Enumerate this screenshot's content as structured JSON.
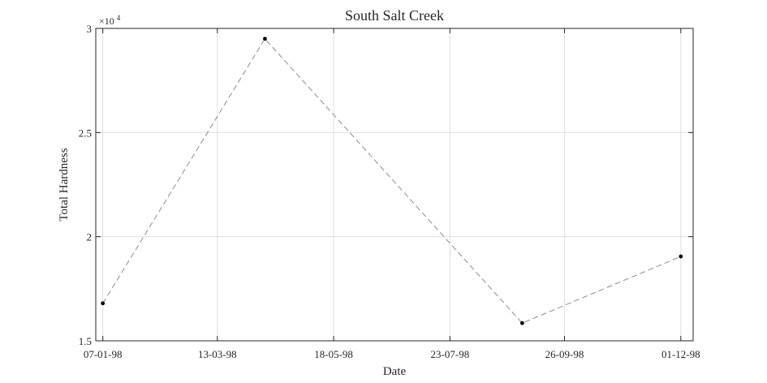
{
  "chart_data": {
    "type": "line",
    "title": "South Salt Creek",
    "xlabel": "Date",
    "ylabel": "Total Hardness",
    "y_exponent_label": "×10",
    "y_exponent_power": "4",
    "x": [
      "1998-01-07",
      "1998-04-09",
      "1998-09-02",
      "1998-12-01"
    ],
    "y": [
      16800,
      29500,
      15850,
      19050
    ],
    "xlim": [
      "1998-01-03",
      "1998-12-08"
    ],
    "ylim": [
      15000,
      30000
    ],
    "x_ticks": [
      "1998-01-07",
      "1998-03-13",
      "1998-05-18",
      "1998-07-23",
      "1998-09-26",
      "1998-12-01"
    ],
    "x_tick_labels": [
      "07-01-98",
      "13-03-98",
      "18-05-98",
      "23-07-98",
      "26-09-98",
      "01-12-98"
    ],
    "y_ticks": [
      15000,
      20000,
      25000,
      30000
    ],
    "y_tick_labels": [
      "1.5",
      "2",
      "2.5",
      "3"
    ],
    "grid": true,
    "line_style": "dashed",
    "line_color": "#8c8c8c",
    "marker_color": "#000000"
  }
}
